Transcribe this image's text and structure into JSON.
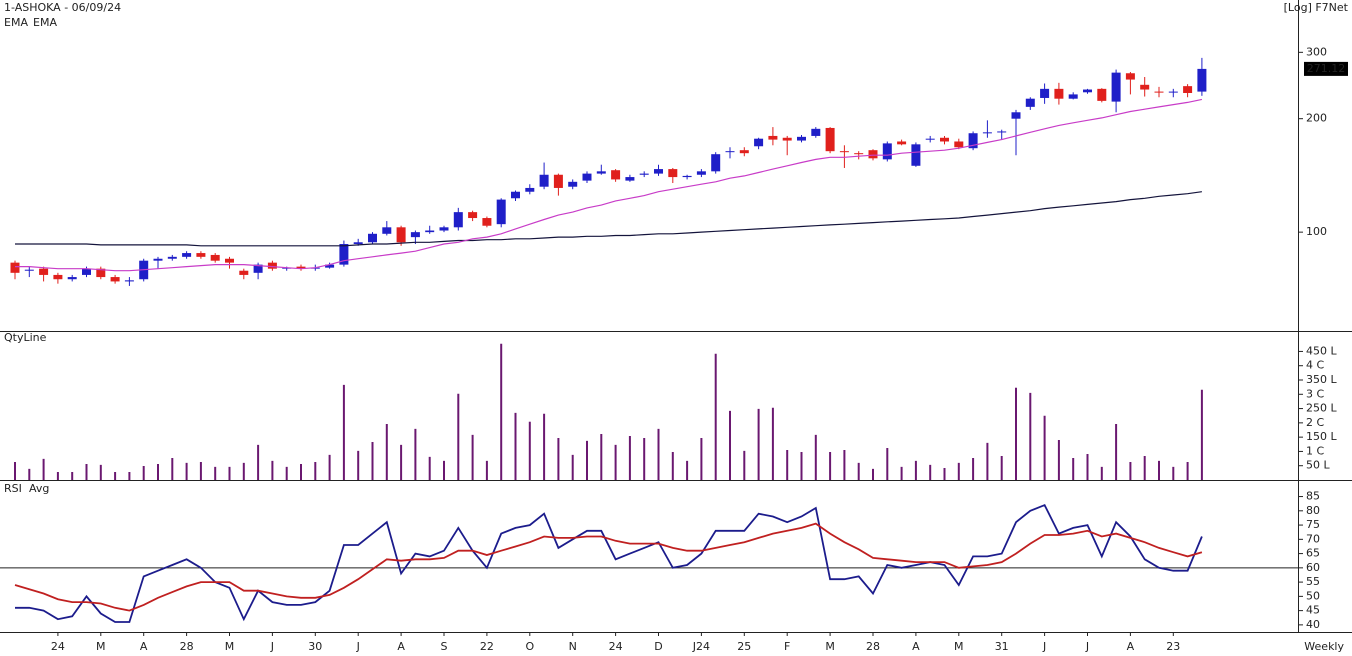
{
  "chart_data": [
    {
      "type": "candlestick",
      "title": "1-ASHOKA - 06/09/24",
      "note": "[Log] F7Net",
      "log_scale": true,
      "open": [
        83,
        79,
        80,
        77,
        75,
        77,
        80,
        76,
        74,
        75,
        84,
        85,
        86,
        88,
        87,
        85,
        79,
        78,
        83,
        80,
        81,
        80,
        80.5,
        82,
        93,
        94,
        99,
        103,
        97,
        100,
        101,
        103,
        113,
        109,
        105,
        123,
        128,
        132,
        142,
        132,
        137,
        143,
        146,
        137,
        142,
        143,
        147,
        140,
        142,
        145,
        163,
        165,
        169,
        180,
        178,
        175,
        180,
        189,
        164,
        162,
        165,
        156,
        174,
        150,
        176,
        178,
        174,
        167,
        183,
        184,
        200,
        215,
        227,
        240,
        226,
        235,
        240,
        222,
        264,
        246,
        236,
        235,
        244,
        236
      ],
      "high": [
        84,
        81,
        81,
        78,
        77,
        81,
        81,
        77,
        76,
        85,
        86,
        87,
        89,
        89,
        88,
        86,
        80,
        83,
        84,
        81,
        82,
        82,
        83,
        95,
        96,
        100,
        107,
        104,
        101,
        104,
        104,
        116,
        114,
        110,
        123,
        129,
        134,
        153,
        143,
        138,
        145,
        151,
        147,
        142,
        145,
        151,
        148,
        142,
        147,
        163,
        168,
        168,
        178,
        190,
        180,
        181,
        190,
        190,
        170,
        164,
        166,
        174,
        176,
        173,
        180,
        180,
        177,
        185,
        198,
        187,
        211,
        228,
        248,
        249,
        235,
        240,
        241,
        270,
        266,
        258,
        243,
        240,
        247,
        290
      ],
      "low": [
        75,
        76,
        74,
        73,
        74,
        76,
        75,
        73,
        72,
        74,
        80,
        84,
        85,
        85,
        83,
        80,
        75,
        75,
        79,
        79,
        79,
        79,
        80,
        81,
        92,
        93,
        98,
        92,
        93,
        99,
        100,
        101,
        107,
        103,
        103,
        121,
        126,
        130,
        125,
        130,
        135,
        142,
        136,
        136,
        140,
        141,
        135,
        138,
        140,
        143,
        157,
        159,
        166,
        170,
        160,
        173,
        178,
        162,
        148,
        156,
        155,
        154,
        170,
        149,
        173,
        171,
        166,
        165,
        178,
        176,
        160,
        211,
        219,
        218,
        225,
        233,
        221,
        208,
        232,
        229,
        228,
        228,
        228,
        230
      ],
      "close": [
        78,
        79.5,
        77,
        75,
        76,
        80,
        76,
        74,
        74.5,
        84,
        85,
        86,
        88,
        86,
        84,
        83,
        77,
        82,
        80,
        80.5,
        80,
        80.5,
        82,
        93,
        94,
        99,
        103,
        94,
        100,
        101,
        103,
        113,
        109,
        104,
        122,
        128,
        131,
        142,
        131,
        136,
        143,
        145,
        138,
        140,
        143,
        147,
        140,
        141,
        145,
        161,
        164,
        162,
        177,
        176,
        175,
        179,
        188,
        164,
        163,
        161,
        157,
        172,
        171,
        171,
        177,
        174,
        168,
        183,
        184,
        185,
        208,
        226,
        240,
        226,
        232,
        239,
        223,
        265,
        254,
        239,
        235,
        236,
        234,
        271.12
      ],
      "up_color": "#1f1fc8",
      "down_color": "#e0201c",
      "series": [
        {
          "name": "EMA",
          "color": "#14143c",
          "values": [
            93,
            93,
            93,
            93,
            93,
            93,
            92.5,
            92.5,
            92.5,
            92.5,
            92.5,
            92.5,
            92.5,
            92,
            92,
            92,
            92,
            92,
            92,
            92,
            92,
            92,
            92,
            92,
            92.5,
            93,
            93,
            93.5,
            94,
            94,
            94.5,
            95,
            95,
            95.5,
            95.5,
            96,
            96,
            96.5,
            97,
            97,
            97.5,
            97.5,
            98,
            98,
            98.5,
            99,
            99,
            99.5,
            100,
            100.5,
            101,
            101.5,
            102,
            102.5,
            103,
            103.5,
            104,
            104.5,
            105,
            105.5,
            106,
            106.5,
            107,
            107.5,
            108,
            108.5,
            109,
            110,
            111,
            112,
            113,
            114,
            115.5,
            116.5,
            117.5,
            118.5,
            119.5,
            120.5,
            122,
            123,
            124.5,
            125.5,
            126.5,
            128
          ]
        },
        {
          "name": "EMA",
          "color": "#c83cc8",
          "values": [
            81,
            81,
            80.5,
            80,
            80,
            80,
            79.5,
            79,
            79,
            79.5,
            80,
            80.5,
            81,
            81.5,
            82,
            82,
            82,
            81.5,
            81,
            80.5,
            80,
            80.5,
            82,
            84,
            85,
            86,
            87,
            88,
            89,
            91,
            93,
            94,
            96,
            97,
            99,
            102,
            105,
            108,
            111,
            113,
            116,
            118,
            121,
            123,
            125,
            128,
            130,
            132,
            134,
            136,
            139,
            141,
            144,
            147,
            150,
            153,
            156,
            158,
            158,
            159,
            160,
            160,
            162,
            163,
            164,
            165,
            167,
            170,
            173,
            176,
            180,
            184,
            188,
            192,
            195,
            198,
            201,
            205,
            209,
            212,
            215,
            218,
            221,
            225
          ]
        }
      ],
      "ylim": [
        55,
        370
      ],
      "yticks": [
        100,
        200,
        300
      ]
    },
    {
      "type": "bar",
      "title": "QtyLine",
      "color": "#6a1870",
      "values": [
        63,
        39,
        74,
        28,
        28,
        56,
        53,
        28,
        28,
        49,
        56,
        77,
        60,
        63,
        46,
        46,
        60,
        123,
        67,
        46,
        56,
        63,
        88,
        333,
        102,
        133,
        196,
        123,
        179,
        81,
        67,
        302,
        158,
        67,
        477,
        235,
        204,
        232,
        147,
        88,
        137,
        161,
        123,
        154,
        147,
        179,
        98,
        67,
        147,
        442,
        242,
        102,
        249,
        253,
        105,
        98,
        158,
        98,
        105,
        60,
        39,
        112,
        46,
        67,
        53,
        42,
        60,
        77,
        130,
        84,
        323,
        305,
        225,
        140,
        77,
        91,
        46,
        196,
        63,
        84,
        67,
        46,
        63,
        316
      ],
      "ylim": [
        0,
        490
      ],
      "yticks": [
        {
          "value": 50,
          "label": "50 L"
        },
        {
          "value": 100,
          "label": "1 C"
        },
        {
          "value": 150,
          "label": "150 L"
        },
        {
          "value": 200,
          "label": "2 C"
        },
        {
          "value": 250,
          "label": "250 L"
        },
        {
          "value": 300,
          "label": "3 C"
        },
        {
          "value": 350,
          "label": "350 L"
        },
        {
          "value": 400,
          "label": "4 C"
        },
        {
          "value": 450,
          "label": "450 L"
        }
      ]
    },
    {
      "type": "line",
      "xlabel": "Weekly",
      "categories": [
        null,
        null,
        null,
        "24",
        null,
        null,
        "M",
        null,
        null,
        "A",
        null,
        null,
        "28",
        null,
        null,
        "M",
        null,
        null,
        "J",
        null,
        null,
        "30",
        null,
        null,
        "J",
        null,
        null,
        "A",
        null,
        null,
        "S",
        null,
        null,
        "22",
        null,
        null,
        "O",
        null,
        null,
        "N",
        null,
        null,
        "24",
        null,
        null,
        "D",
        null,
        null,
        "J24",
        null,
        null,
        "25",
        null,
        null,
        "F",
        null,
        null,
        "M",
        null,
        null,
        "28",
        null,
        null,
        "A",
        null,
        null,
        "M",
        null,
        null,
        "31",
        null,
        null,
        "J",
        null,
        null,
        "J",
        null,
        null,
        "A",
        null,
        null,
        "23",
        null,
        null
      ],
      "series": [
        {
          "name": "RSI",
          "color": "#1c1c8c",
          "values": [
            46,
            46,
            45,
            42,
            43,
            50,
            44,
            41,
            41,
            57,
            59,
            61,
            63,
            60,
            55,
            53,
            42,
            52,
            48,
            47,
            47,
            48,
            52,
            68,
            68,
            72,
            76,
            58,
            65,
            64,
            66,
            74,
            66,
            60,
            72,
            74,
            75,
            79,
            67,
            70,
            73,
            73,
            63,
            65,
            67,
            69,
            60,
            61,
            65,
            73,
            73,
            73,
            79,
            78,
            76,
            78,
            81,
            56,
            56,
            57,
            51,
            61,
            60,
            61,
            62,
            61,
            54,
            64,
            64,
            65,
            76,
            80,
            82,
            72,
            74,
            75,
            64,
            76,
            71,
            63,
            60,
            59,
            59,
            71
          ]
        },
        {
          "name": "Avg",
          "color": "#c02020",
          "values": [
            54,
            52.5,
            51,
            49,
            48,
            48,
            47.5,
            46,
            45,
            47,
            49.5,
            51.5,
            53.5,
            55,
            55,
            55,
            52,
            52,
            51,
            50,
            49.5,
            49.5,
            50.5,
            53,
            56,
            59.5,
            63,
            62.5,
            63,
            63,
            63.5,
            66,
            66,
            64.5,
            66,
            67.5,
            69,
            71,
            70.5,
            70.5,
            71,
            71,
            69.5,
            68.5,
            68.5,
            68.5,
            67,
            66,
            66,
            67,
            68,
            69,
            70.5,
            72,
            73,
            74,
            75.5,
            72,
            69,
            66.5,
            63.5,
            63,
            62.5,
            62,
            62,
            62,
            60,
            60.5,
            61,
            62,
            65,
            68.5,
            71.5,
            71.5,
            72,
            73,
            71,
            72,
            70.5,
            69,
            67,
            65.5,
            64,
            65.5
          ]
        }
      ],
      "reference_line": 60,
      "ylim": [
        37.5,
        88
      ],
      "yticks": [
        40,
        45,
        50,
        55,
        60,
        65,
        70,
        75,
        80,
        85
      ]
    }
  ]
}
